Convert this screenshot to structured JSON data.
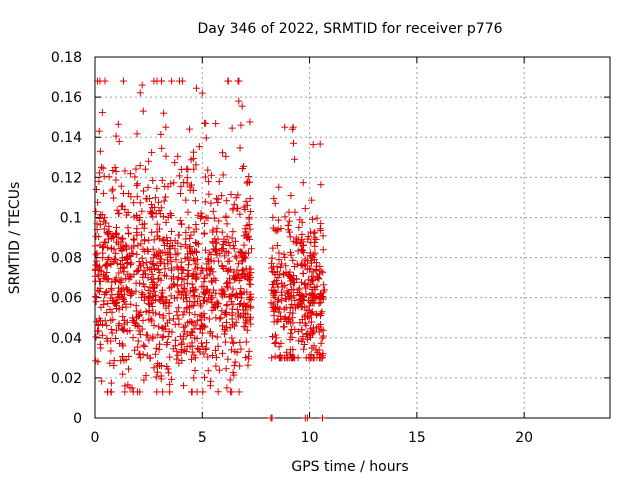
{
  "chart_data": {
    "type": "scatter",
    "title": "Day 346 of 2022, SRMTID for receiver p776",
    "xlabel": "GPS time / hours",
    "ylabel": "SRMTID / TECUs",
    "xlim": [
      0,
      24
    ],
    "ylim": [
      0,
      0.18
    ],
    "xticks": [
      0,
      5,
      10,
      15,
      20
    ],
    "xtick_labels": [
      "0",
      "5",
      "10",
      "15",
      "20"
    ],
    "yticks": [
      0,
      0.02,
      0.04,
      0.06,
      0.08,
      0.1,
      0.12,
      0.14,
      0.16,
      0.18
    ],
    "ytick_labels": [
      "0",
      "0.02",
      "0.04",
      "0.06",
      "0.08",
      "0.1",
      "0.12",
      "0.14",
      "0.16",
      "0.18"
    ],
    "grid": true,
    "marker": "+",
    "color": "#e00000",
    "series": [
      {
        "name": "p776",
        "generator": {
          "seed": 346,
          "segments": [
            {
              "x0": 0.0,
              "x1": 7.3,
              "count": 1150,
              "ymin": 0.013,
              "ymax": 0.168,
              "center": 0.068,
              "spread": 0.026
            },
            {
              "x0": 8.2,
              "x1": 10.7,
              "count": 380,
              "ymin": 0.03,
              "ymax": 0.145,
              "center": 0.058,
              "spread": 0.02
            }
          ]
        },
        "points": [
          [
            0.05,
            0.058
          ],
          [
            0.1,
            0.094
          ],
          [
            0.2,
            0.143
          ],
          [
            0.25,
            0.133
          ],
          [
            0.3,
            0.125
          ],
          [
            0.4,
            0.112
          ],
          [
            0.6,
            0.079
          ],
          [
            1.0,
            0.095
          ],
          [
            1.3,
            0.036
          ],
          [
            1.4,
            0.016
          ],
          [
            2.2,
            0.166
          ],
          [
            2.25,
            0.153
          ],
          [
            2.5,
            0.128
          ],
          [
            3.1,
            0.168
          ],
          [
            3.2,
            0.152
          ],
          [
            3.3,
            0.145
          ],
          [
            4.5,
            0.013
          ],
          [
            4.6,
            0.02
          ],
          [
            5.0,
            0.162
          ],
          [
            5.1,
            0.147
          ],
          [
            6.3,
            0.019
          ],
          [
            6.7,
            0.158
          ],
          [
            6.8,
            0.146
          ],
          [
            7.1,
            0.106
          ],
          [
            8.4,
            0.107
          ],
          [
            8.5,
            0.086
          ],
          [
            9.0,
            0.096
          ],
          [
            9.1,
            0.055
          ],
          [
            9.2,
            0.144
          ],
          [
            9.25,
            0.137
          ],
          [
            9.3,
            0.129
          ],
          [
            9.5,
            0.095
          ],
          [
            10.0,
            0.041
          ],
          [
            10.3,
            0.089
          ],
          [
            10.6,
            0.031
          ],
          [
            8.2,
            0.0
          ],
          [
            8.25,
            0.0
          ],
          [
            9.8,
            0.0
          ],
          [
            9.9,
            0.0
          ],
          [
            10.6,
            0.0
          ]
        ]
      }
    ]
  }
}
